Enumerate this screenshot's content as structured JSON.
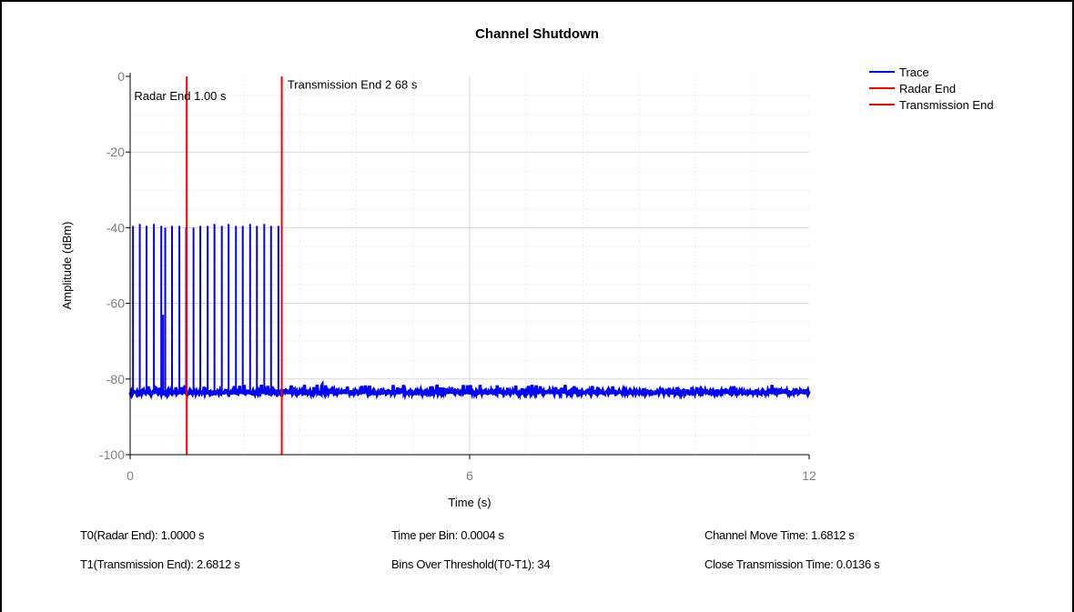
{
  "chart_data": {
    "type": "line",
    "title": "Channel Shutdown",
    "xlabel": "Time (s)",
    "ylabel": "Amplitude (dBm)",
    "xlim": [
      0,
      12
    ],
    "ylim": [
      -100,
      0
    ],
    "xticks": [
      0,
      6,
      12
    ],
    "yticks": [
      0,
      -20,
      -40,
      -60,
      -80,
      -100
    ],
    "grid": true,
    "legend": "top-right",
    "series": [
      {
        "name": "Trace",
        "color": "#0000ff",
        "noise_floor": [
          -84,
          -83
        ],
        "pulse_times": [
          0.05,
          0.17,
          0.29,
          0.42,
          0.55,
          0.62,
          0.74,
          0.87,
          0.99,
          1.12,
          1.24,
          1.37,
          1.49,
          1.62,
          1.74,
          1.87,
          1.99,
          2.12,
          2.24,
          2.37,
          2.49,
          2.62
        ],
        "pulse_peaks": [
          -39.5,
          -39,
          -39.5,
          -39,
          -39.5,
          -40,
          -39.5,
          -39.5,
          -40,
          -40,
          -39.5,
          -39.5,
          -39,
          -39.5,
          -39,
          -39.5,
          -39.5,
          -39,
          -39.5,
          -39,
          -39.5,
          -39.5
        ],
        "extra_spikes": [
          {
            "t": 0.55,
            "v": -63
          }
        ]
      },
      {
        "name": "Radar End",
        "color": "#ff0000",
        "x": 1.0
      },
      {
        "name": "Transmission End",
        "color": "#ff0000",
        "x": 2.68
      }
    ],
    "annotations": [
      {
        "text": "Radar End 1.00 s",
        "x": 0.07,
        "y": -5
      },
      {
        "text": "Transmission End 2 68 s",
        "x": 2.78,
        "y": -2
      }
    ]
  },
  "stats": {
    "t0": "T0(Radar End): 1.0000 s",
    "t1": "T1(Transmission End): 2.6812 s",
    "time_per_bin": "Time per Bin: 0.0004 s",
    "bins_over": "Bins Over Threshold(T0-T1): 34",
    "channel_move": "Channel Move Time: 1.6812 s",
    "close_tx": "Close Transmission Time: 0.0136 s"
  }
}
